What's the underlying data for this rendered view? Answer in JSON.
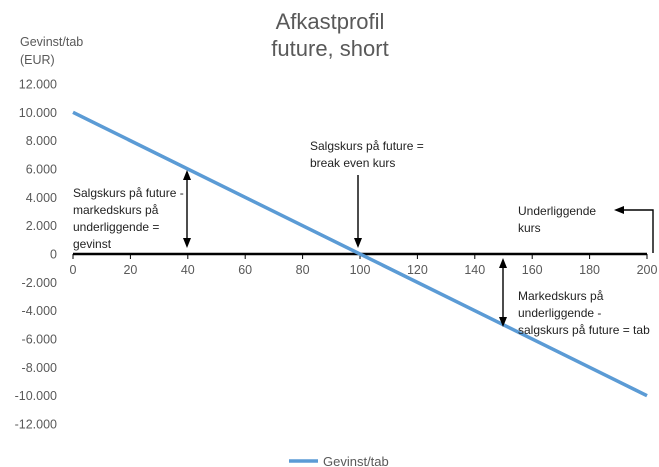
{
  "chart_data": {
    "type": "line",
    "title": [
      "Afkastprofil",
      "future, short"
    ],
    "ylabel": [
      "Gevinst/tab",
      "(EUR)"
    ],
    "xlabel": "",
    "xlim": [
      0,
      200
    ],
    "ylim": [
      -12000,
      12000
    ],
    "x_ticks": [
      0,
      20,
      40,
      60,
      80,
      100,
      120,
      140,
      160,
      180,
      200
    ],
    "y_ticks": [
      12000,
      10000,
      8000,
      6000,
      4000,
      2000,
      0,
      -2000,
      -4000,
      -6000,
      -8000,
      -10000,
      -12000
    ],
    "x_tick_labels": [
      "0",
      "20",
      "40",
      "60",
      "80",
      "100",
      "120",
      "140",
      "160",
      "180",
      "200"
    ],
    "y_tick_labels": [
      "12.000",
      "10.000",
      "8.000",
      "6.000",
      "4.000",
      "2.000",
      "0",
      "-2.000",
      "-4.000",
      "-6.000",
      "-8.000",
      "-10.000",
      "-12.000"
    ],
    "grid": false,
    "legend_position": "bottom",
    "series": [
      {
        "name": "Gevinst/tab",
        "color": "#5b9bd5",
        "x": [
          0,
          200
        ],
        "y": [
          10000,
          -10000
        ]
      }
    ],
    "annotations": [
      {
        "id": "gevinst",
        "lines": [
          "Salgskurs på future -",
          "markedskurs på",
          "underliggende =",
          "gevinst"
        ]
      },
      {
        "id": "break-even",
        "lines": [
          "Salgskurs på future =",
          "break even kurs"
        ]
      },
      {
        "id": "underliggende",
        "lines": [
          "Underliggende",
          "kurs"
        ]
      },
      {
        "id": "tab",
        "lines": [
          "Markedskurs på",
          "underliggende -",
          "salgskurs på future = tab"
        ]
      }
    ]
  }
}
